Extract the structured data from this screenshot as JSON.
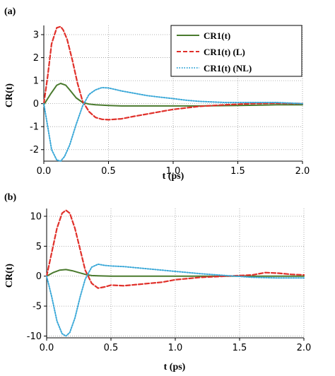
{
  "colors": {
    "total": "#4a7a2e",
    "local": "#e0302a",
    "nonlocal": "#3aa8d8",
    "grid": "#9a9a9a"
  },
  "chart_data": [
    {
      "type": "line",
      "panel": "(a)",
      "xlabel": "t (ps)",
      "ylabel": "CR(t)",
      "xlim": [
        0,
        2.0
      ],
      "ylim": [
        -2.5,
        3.4
      ],
      "xticks": [
        "0.0",
        "0.5",
        "1.0",
        "1.5",
        "2.0"
      ],
      "yticks": [
        "-2",
        "-1",
        "0",
        "1",
        "2",
        "3"
      ],
      "grid": true,
      "legend_position": "top-right",
      "series": [
        {
          "name": "CR1(t)",
          "color_key": "total",
          "dash": "solid",
          "x": [
            0,
            0.05,
            0.1,
            0.13,
            0.17,
            0.2,
            0.25,
            0.3,
            0.35,
            0.4,
            0.5,
            0.6,
            0.7,
            0.8,
            1.0,
            1.2,
            1.5,
            1.8,
            2.0
          ],
          "y": [
            -0.05,
            0.4,
            0.8,
            0.88,
            0.8,
            0.6,
            0.25,
            0.05,
            -0.02,
            -0.05,
            -0.08,
            -0.1,
            -0.1,
            -0.1,
            -0.1,
            -0.1,
            -0.08,
            -0.05,
            -0.05
          ]
        },
        {
          "name": "CR1(t)  (L)",
          "color_key": "local",
          "dash": "dashed",
          "x": [
            0,
            0.03,
            0.06,
            0.1,
            0.13,
            0.15,
            0.18,
            0.22,
            0.26,
            0.3,
            0.35,
            0.4,
            0.45,
            0.5,
            0.6,
            0.7,
            0.8,
            0.9,
            1.0,
            1.2,
            1.4,
            1.6,
            1.8,
            2.0
          ],
          "y": [
            0,
            1.2,
            2.6,
            3.3,
            3.35,
            3.2,
            2.8,
            1.9,
            0.9,
            0.1,
            -0.35,
            -0.6,
            -0.68,
            -0.7,
            -0.66,
            -0.55,
            -0.45,
            -0.35,
            -0.25,
            -0.12,
            -0.05,
            0.0,
            0.02,
            0.0
          ]
        },
        {
          "name": "CR1(t) (NL)",
          "color_key": "nonlocal",
          "dash": "dotted",
          "x": [
            0,
            0.03,
            0.06,
            0.1,
            0.13,
            0.16,
            0.2,
            0.25,
            0.3,
            0.35,
            0.4,
            0.45,
            0.5,
            0.55,
            0.6,
            0.7,
            0.8,
            0.9,
            1.0,
            1.1,
            1.2,
            1.4,
            1.6,
            1.8,
            2.0
          ],
          "y": [
            0,
            -1.0,
            -2.0,
            -2.45,
            -2.5,
            -2.3,
            -1.8,
            -0.9,
            -0.1,
            0.4,
            0.6,
            0.7,
            0.68,
            0.62,
            0.55,
            0.45,
            0.35,
            0.28,
            0.22,
            0.15,
            0.1,
            0.05,
            0.05,
            0.05,
            0.0
          ]
        }
      ]
    },
    {
      "type": "line",
      "panel": "(b)",
      "xlabel": "t (ps)",
      "ylabel": "CR(t)",
      "xlim": [
        0,
        2.0
      ],
      "ylim": [
        -10.3,
        11.3
      ],
      "xticks": [
        "0.0",
        "0.5",
        "1.0",
        "1.5",
        "2.0"
      ],
      "yticks": [
        "-10",
        "-5",
        "0",
        "5",
        "10"
      ],
      "grid": true,
      "series": [
        {
          "name": "CR1(t)",
          "color_key": "total",
          "dash": "solid",
          "x": [
            0,
            0.05,
            0.1,
            0.15,
            0.2,
            0.25,
            0.3,
            0.35,
            0.4,
            0.5,
            0.6,
            0.8,
            1.0,
            1.5,
            2.0
          ],
          "y": [
            0,
            0.6,
            1.0,
            1.1,
            0.9,
            0.6,
            0.3,
            0.1,
            0.05,
            0.0,
            0.0,
            0.0,
            0.0,
            0.0,
            0.0
          ]
        },
        {
          "name": "CR1(t)  (L)",
          "color_key": "local",
          "dash": "dashed",
          "x": [
            0,
            0.04,
            0.08,
            0.12,
            0.15,
            0.18,
            0.22,
            0.26,
            0.3,
            0.35,
            0.4,
            0.45,
            0.5,
            0.6,
            0.7,
            0.8,
            0.9,
            1.0,
            1.2,
            1.4,
            1.6,
            1.7,
            1.8,
            1.9,
            2.0
          ],
          "y": [
            0,
            4.0,
            8.0,
            10.5,
            11.0,
            10.5,
            8.0,
            4.5,
            1.0,
            -1.2,
            -2.0,
            -1.8,
            -1.5,
            -1.6,
            -1.4,
            -1.2,
            -1.0,
            -0.6,
            -0.2,
            0.0,
            0.2,
            0.6,
            0.5,
            0.3,
            0.2
          ]
        },
        {
          "name": "CR1(t) (NL)",
          "color_key": "nonlocal",
          "dash": "dotted",
          "x": [
            0,
            0.04,
            0.08,
            0.12,
            0.15,
            0.18,
            0.22,
            0.26,
            0.3,
            0.35,
            0.4,
            0.45,
            0.5,
            0.6,
            0.7,
            0.8,
            0.9,
            1.0,
            1.2,
            1.4,
            1.6,
            1.8,
            2.0
          ],
          "y": [
            0,
            -3.5,
            -7.5,
            -9.6,
            -10.0,
            -9.4,
            -7.0,
            -3.5,
            -0.5,
            1.5,
            2.0,
            1.8,
            1.7,
            1.6,
            1.4,
            1.2,
            1.0,
            0.8,
            0.4,
            0.1,
            -0.2,
            -0.3,
            -0.3
          ]
        }
      ]
    }
  ]
}
